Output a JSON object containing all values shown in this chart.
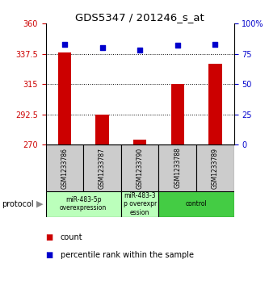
{
  "title": "GDS5347 / 201246_s_at",
  "samples": [
    "GSM1233786",
    "GSM1233787",
    "GSM1233790",
    "GSM1233788",
    "GSM1233789"
  ],
  "count_values": [
    338.5,
    292.0,
    273.5,
    315.0,
    330.0
  ],
  "percentile_values": [
    83,
    80,
    78,
    82,
    83
  ],
  "ylim_left": [
    270,
    360
  ],
  "ylim_right": [
    0,
    100
  ],
  "yticks_left": [
    270,
    292.5,
    315,
    337.5,
    360
  ],
  "ytick_labels_left": [
    "270",
    "292.5",
    "315",
    "337.5",
    "360"
  ],
  "yticks_right": [
    0,
    25,
    50,
    75,
    100
  ],
  "ytick_labels_right": [
    "0",
    "25",
    "50",
    "75",
    "100%"
  ],
  "bar_color": "#cc0000",
  "scatter_color": "#0000cc",
  "grid_yticks": [
    292.5,
    315,
    337.5
  ],
  "protocol_labels": [
    "miR-483-5p\noverexpression",
    "miR-483-3\np overexpr\nession",
    "control"
  ],
  "protocol_groups": [
    [
      0,
      1
    ],
    [
      2
    ],
    [
      3,
      4
    ]
  ],
  "label_count": "count",
  "label_percentile": "percentile rank within the sample",
  "protocol_text": "protocol",
  "bg_color_sample": "#cccccc",
  "bg_color_protocol_light": "#bbffbb",
  "bg_color_protocol_dark": "#44cc44"
}
